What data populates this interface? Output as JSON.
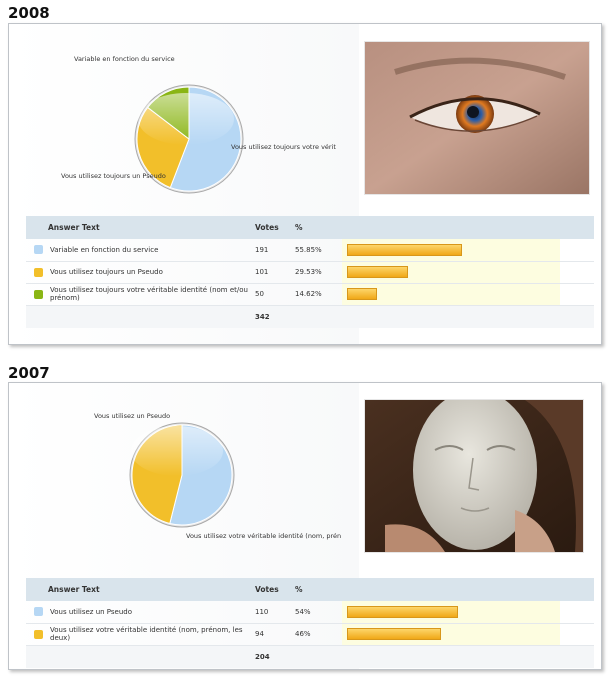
{
  "sections": [
    {
      "year": "2008",
      "photo_icon": "eye-with-browser-logo-photo",
      "table": {
        "headers": {
          "answer": "Answer Text",
          "votes": "Votes",
          "percent": "%"
        },
        "rows": [
          {
            "color": "#b6d7f4",
            "answer": "Variable en fonction du service",
            "votes": "191",
            "percent": "55.85%"
          },
          {
            "color": "#f2bf2a",
            "answer": "Vous utilisez toujours un Pseudo",
            "votes": "101",
            "percent": "29.53%"
          },
          {
            "color": "#8ab514",
            "answer": "Vous utilisez toujours votre véritable identité (nom et/ou prénom)",
            "votes": "50",
            "percent": "14.62%"
          }
        ],
        "total": "342"
      },
      "pie_labels": [
        "Variable en fonction du service",
        "Vous utilisez toujours un Pseudo",
        "Vous utilisez toujours votre  vérit"
      ]
    },
    {
      "year": "2007",
      "photo_icon": "mannequin-head-photo",
      "table": {
        "headers": {
          "answer": "Answer Text",
          "votes": "Votes",
          "percent": "%"
        },
        "rows": [
          {
            "color": "#b6d7f4",
            "answer": "Vous utilisez un Pseudo",
            "votes": "110",
            "percent": "54%"
          },
          {
            "color": "#f2bf2a",
            "answer": "Vous utilisez votre véritable identité (nom, prénom, les deux)",
            "votes": "94",
            "percent": "46%"
          }
        ],
        "total": "204"
      },
      "pie_labels": [
        "Vous utilisez un Pseudo",
        "Vous utilisez votre véritable identité (nom, prén"
      ]
    }
  ],
  "chart_data": [
    {
      "type": "pie",
      "title": "2008",
      "categories": [
        "Variable en fonction du service",
        "Vous utilisez toujours un Pseudo",
        "Vous utilisez toujours votre véritable identité (nom et/ou prénom)"
      ],
      "values": [
        191,
        101,
        50
      ],
      "percentages": [
        55.85,
        29.53,
        14.62
      ],
      "colors": [
        "#b6d7f4",
        "#f2bf2a",
        "#8ab514"
      ],
      "total": 342
    },
    {
      "type": "pie",
      "title": "2007",
      "categories": [
        "Vous utilisez un Pseudo",
        "Vous utilisez votre véritable identité (nom, prénom, les deux)"
      ],
      "values": [
        110,
        94
      ],
      "percentages": [
        54,
        46
      ],
      "colors": [
        "#b6d7f4",
        "#f2bf2a"
      ],
      "total": 204
    }
  ]
}
